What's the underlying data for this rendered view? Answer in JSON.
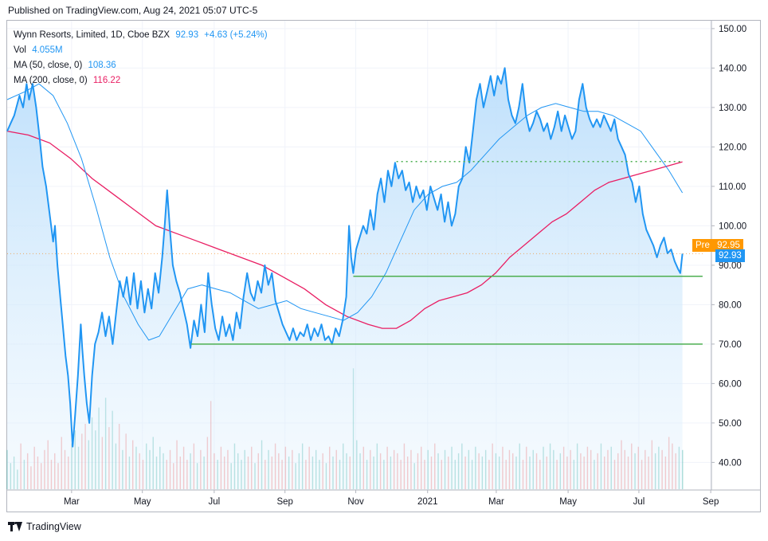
{
  "published": "Published on TradingView.com, Aug 24, 2021 05:07 UTC-5",
  "legend": {
    "symbol": "Wynn Resorts, Limited, 1D, Cboe BZX",
    "price": "92.93",
    "change": "+4.63 (+5.24%)",
    "vol_label": "Vol",
    "vol_value": "4.055M",
    "ma50_label": "MA (50, close, 0)",
    "ma50_value": "108.36",
    "ma200_label": "MA (200, close, 0)",
    "ma200_value": "116.22"
  },
  "badges": {
    "pre_label": "Pre",
    "pre_value": "92.95",
    "last_value": "92.93"
  },
  "footer": {
    "brand": "TradingView"
  },
  "colors": {
    "price_line": "#2196f3",
    "ma200": "#e91e63",
    "ma50": "#2196f3",
    "support": "#4caf50",
    "resistance": "#4caf50",
    "pre_badge": "#ff9800",
    "vol_up": "#26a69a",
    "vol_down": "#ef5350"
  },
  "chart_data": {
    "type": "line",
    "ylim": [
      33,
      152
    ],
    "y_ticks": [
      "150.00",
      "140.00",
      "130.00",
      "120.00",
      "110.00",
      "100.00",
      "90.00",
      "80.00",
      "70.00",
      "60.00",
      "50.00",
      "40.00"
    ],
    "x_ticks": [
      {
        "label": "Mar",
        "t": 1.82
      },
      {
        "label": "May",
        "t": 3.82
      },
      {
        "label": "Jul",
        "t": 5.85
      },
      {
        "label": "Sep",
        "t": 7.85
      },
      {
        "label": "Nov",
        "t": 9.85
      },
      {
        "label": "2021",
        "t": 11.88
      },
      {
        "label": "Mar",
        "t": 13.82
      },
      {
        "label": "May",
        "t": 15.85
      },
      {
        "label": "Jul",
        "t": 17.85
      },
      {
        "label": "Sep",
        "t": 19.88
      }
    ],
    "xlim": [
      0,
      19.9
    ],
    "price": [
      [
        0.0,
        124
      ],
      [
        0.1,
        126
      ],
      [
        0.2,
        128
      ],
      [
        0.35,
        133
      ],
      [
        0.45,
        130
      ],
      [
        0.55,
        136
      ],
      [
        0.62,
        132
      ],
      [
        0.72,
        136
      ],
      [
        0.82,
        130
      ],
      [
        0.92,
        122
      ],
      [
        1.0,
        115
      ],
      [
        1.1,
        110
      ],
      [
        1.2,
        103
      ],
      [
        1.3,
        96
      ],
      [
        1.35,
        100
      ],
      [
        1.42,
        90
      ],
      [
        1.5,
        82
      ],
      [
        1.58,
        74
      ],
      [
        1.65,
        67
      ],
      [
        1.72,
        62
      ],
      [
        1.78,
        55
      ],
      [
        1.85,
        44
      ],
      [
        1.92,
        52
      ],
      [
        2.0,
        62
      ],
      [
        2.08,
        75
      ],
      [
        2.12,
        69
      ],
      [
        2.18,
        62
      ],
      [
        2.25,
        55
      ],
      [
        2.32,
        50
      ],
      [
        2.4,
        62
      ],
      [
        2.48,
        70
      ],
      [
        2.58,
        73
      ],
      [
        2.68,
        78
      ],
      [
        2.78,
        72
      ],
      [
        2.88,
        77
      ],
      [
        2.98,
        70
      ],
      [
        3.08,
        78
      ],
      [
        3.18,
        86
      ],
      [
        3.28,
        82
      ],
      [
        3.38,
        87
      ],
      [
        3.48,
        80
      ],
      [
        3.58,
        88
      ],
      [
        3.68,
        79
      ],
      [
        3.78,
        86
      ],
      [
        3.88,
        78
      ],
      [
        3.98,
        84
      ],
      [
        4.08,
        79
      ],
      [
        4.18,
        88
      ],
      [
        4.28,
        83
      ],
      [
        4.38,
        92
      ],
      [
        4.45,
        100
      ],
      [
        4.52,
        109
      ],
      [
        4.6,
        99
      ],
      [
        4.68,
        90
      ],
      [
        4.78,
        86
      ],
      [
        4.88,
        83
      ],
      [
        4.98,
        79
      ],
      [
        5.08,
        75
      ],
      [
        5.18,
        69
      ],
      [
        5.28,
        76
      ],
      [
        5.38,
        72
      ],
      [
        5.48,
        80
      ],
      [
        5.58,
        73
      ],
      [
        5.68,
        88
      ],
      [
        5.78,
        80
      ],
      [
        5.88,
        74
      ],
      [
        5.98,
        71
      ],
      [
        6.08,
        77
      ],
      [
        6.18,
        72
      ],
      [
        6.28,
        75
      ],
      [
        6.38,
        71
      ],
      [
        6.48,
        78
      ],
      [
        6.58,
        74
      ],
      [
        6.68,
        82
      ],
      [
        6.78,
        88
      ],
      [
        6.88,
        83
      ],
      [
        6.98,
        81
      ],
      [
        7.08,
        86
      ],
      [
        7.18,
        83
      ],
      [
        7.28,
        90
      ],
      [
        7.38,
        85
      ],
      [
        7.48,
        88
      ],
      [
        7.58,
        81
      ],
      [
        7.68,
        78
      ],
      [
        7.78,
        75
      ],
      [
        7.88,
        73
      ],
      [
        7.98,
        71
      ],
      [
        8.08,
        74
      ],
      [
        8.18,
        71
      ],
      [
        8.28,
        73
      ],
      [
        8.38,
        72
      ],
      [
        8.48,
        75
      ],
      [
        8.58,
        71
      ],
      [
        8.68,
        74
      ],
      [
        8.78,
        72
      ],
      [
        8.88,
        75
      ],
      [
        8.98,
        71
      ],
      [
        9.08,
        72
      ],
      [
        9.18,
        70
      ],
      [
        9.28,
        74
      ],
      [
        9.38,
        72
      ],
      [
        9.48,
        76
      ],
      [
        9.58,
        82
      ],
      [
        9.66,
        100
      ],
      [
        9.72,
        92
      ],
      [
        9.78,
        88
      ],
      [
        9.86,
        94
      ],
      [
        9.96,
        97
      ],
      [
        10.06,
        100
      ],
      [
        10.16,
        98
      ],
      [
        10.26,
        104
      ],
      [
        10.36,
        99
      ],
      [
        10.46,
        108
      ],
      [
        10.56,
        112
      ],
      [
        10.66,
        106
      ],
      [
        10.76,
        114
      ],
      [
        10.86,
        110
      ],
      [
        10.96,
        116
      ],
      [
        11.06,
        112
      ],
      [
        11.16,
        114
      ],
      [
        11.26,
        109
      ],
      [
        11.36,
        111
      ],
      [
        11.46,
        106
      ],
      [
        11.56,
        110
      ],
      [
        11.66,
        107
      ],
      [
        11.76,
        109
      ],
      [
        11.86,
        104
      ],
      [
        11.96,
        110
      ],
      [
        12.06,
        107
      ],
      [
        12.16,
        104
      ],
      [
        12.26,
        108
      ],
      [
        12.36,
        101
      ],
      [
        12.46,
        106
      ],
      [
        12.56,
        100
      ],
      [
        12.66,
        103
      ],
      [
        12.76,
        110
      ],
      [
        12.86,
        112
      ],
      [
        12.96,
        120
      ],
      [
        13.06,
        116
      ],
      [
        13.16,
        124
      ],
      [
        13.26,
        132
      ],
      [
        13.36,
        136
      ],
      [
        13.46,
        130
      ],
      [
        13.56,
        134
      ],
      [
        13.66,
        138
      ],
      [
        13.76,
        133
      ],
      [
        13.86,
        138
      ],
      [
        13.96,
        136
      ],
      [
        14.06,
        140
      ],
      [
        14.16,
        132
      ],
      [
        14.26,
        128
      ],
      [
        14.36,
        126
      ],
      [
        14.46,
        130
      ],
      [
        14.56,
        136
      ],
      [
        14.66,
        128
      ],
      [
        14.76,
        124
      ],
      [
        14.86,
        126
      ],
      [
        14.96,
        129
      ],
      [
        15.06,
        127
      ],
      [
        15.16,
        124
      ],
      [
        15.26,
        126
      ],
      [
        15.36,
        122
      ],
      [
        15.46,
        125
      ],
      [
        15.56,
        129
      ],
      [
        15.66,
        124
      ],
      [
        15.76,
        128
      ],
      [
        15.86,
        125
      ],
      [
        15.96,
        122
      ],
      [
        16.06,
        124
      ],
      [
        16.16,
        132
      ],
      [
        16.26,
        136
      ],
      [
        16.36,
        130
      ],
      [
        16.46,
        127
      ],
      [
        16.56,
        125
      ],
      [
        16.66,
        127
      ],
      [
        16.76,
        125
      ],
      [
        16.86,
        128
      ],
      [
        16.96,
        126
      ],
      [
        17.06,
        124
      ],
      [
        17.16,
        127
      ],
      [
        17.26,
        122
      ],
      [
        17.36,
        120
      ],
      [
        17.46,
        118
      ],
      [
        17.56,
        113
      ],
      [
        17.66,
        111
      ],
      [
        17.76,
        106
      ],
      [
        17.86,
        110
      ],
      [
        17.96,
        103
      ],
      [
        18.06,
        99
      ],
      [
        18.16,
        97
      ],
      [
        18.26,
        95
      ],
      [
        18.36,
        92
      ],
      [
        18.46,
        95
      ],
      [
        18.56,
        97
      ],
      [
        18.66,
        93
      ],
      [
        18.76,
        94
      ],
      [
        18.86,
        91
      ],
      [
        18.96,
        89
      ],
      [
        19.02,
        88
      ],
      [
        19.08,
        92.93
      ]
    ],
    "ma50": [
      [
        0.0,
        132
      ],
      [
        0.5,
        134
      ],
      [
        0.9,
        136
      ],
      [
        1.3,
        133
      ],
      [
        1.7,
        126
      ],
      [
        2.1,
        117
      ],
      [
        2.5,
        105
      ],
      [
        2.9,
        92
      ],
      [
        3.3,
        82
      ],
      [
        3.7,
        75
      ],
      [
        4.0,
        71
      ],
      [
        4.3,
        72
      ],
      [
        4.7,
        78
      ],
      [
        5.1,
        84
      ],
      [
        5.5,
        85
      ],
      [
        5.9,
        84
      ],
      [
        6.3,
        83
      ],
      [
        6.7,
        81
      ],
      [
        7.1,
        79
      ],
      [
        7.5,
        80
      ],
      [
        7.9,
        81
      ],
      [
        8.3,
        79
      ],
      [
        8.7,
        78
      ],
      [
        9.1,
        77
      ],
      [
        9.5,
        76
      ],
      [
        9.9,
        78
      ],
      [
        10.3,
        82
      ],
      [
        10.7,
        88
      ],
      [
        11.1,
        96
      ],
      [
        11.5,
        104
      ],
      [
        11.9,
        108
      ],
      [
        12.3,
        110
      ],
      [
        12.7,
        111
      ],
      [
        13.1,
        114
      ],
      [
        13.5,
        118
      ],
      [
        13.9,
        122
      ],
      [
        14.3,
        125
      ],
      [
        14.7,
        128
      ],
      [
        15.1,
        130
      ],
      [
        15.5,
        131
      ],
      [
        15.9,
        130
      ],
      [
        16.3,
        129
      ],
      [
        16.7,
        129
      ],
      [
        17.1,
        128
      ],
      [
        17.5,
        126
      ],
      [
        17.9,
        124
      ],
      [
        18.3,
        119
      ],
      [
        18.7,
        114
      ],
      [
        19.08,
        108.36
      ]
    ],
    "ma200": [
      [
        0.0,
        124
      ],
      [
        0.6,
        123
      ],
      [
        1.2,
        121
      ],
      [
        1.8,
        117
      ],
      [
        2.4,
        112
      ],
      [
        3.0,
        108
      ],
      [
        3.6,
        104
      ],
      [
        4.2,
        100
      ],
      [
        4.8,
        98
      ],
      [
        5.4,
        96
      ],
      [
        6.0,
        94
      ],
      [
        6.6,
        92
      ],
      [
        7.2,
        90
      ],
      [
        7.8,
        87
      ],
      [
        8.4,
        84
      ],
      [
        9.0,
        80
      ],
      [
        9.6,
        77
      ],
      [
        10.2,
        75
      ],
      [
        10.6,
        74
      ],
      [
        11.0,
        74
      ],
      [
        11.4,
        76
      ],
      [
        11.8,
        79
      ],
      [
        12.2,
        81
      ],
      [
        12.6,
        82
      ],
      [
        13.0,
        83
      ],
      [
        13.4,
        85
      ],
      [
        13.8,
        88
      ],
      [
        14.2,
        92
      ],
      [
        14.6,
        95
      ],
      [
        15.0,
        98
      ],
      [
        15.4,
        101
      ],
      [
        15.8,
        103
      ],
      [
        16.2,
        106
      ],
      [
        16.6,
        109
      ],
      [
        17.0,
        111
      ],
      [
        17.4,
        112
      ],
      [
        17.8,
        113
      ],
      [
        18.2,
        114
      ],
      [
        18.6,
        115
      ],
      [
        19.08,
        116.22
      ]
    ],
    "levels": [
      {
        "name": "resistance-dotted",
        "y": 116.3,
        "x0": 11.0,
        "x1": 19.1,
        "style": "dotted"
      },
      {
        "name": "support-87",
        "y": 87.2,
        "x0": 9.78,
        "x1": 19.65,
        "style": "solid"
      },
      {
        "name": "support-70",
        "y": 70.0,
        "x0": 5.2,
        "x1": 19.65,
        "style": "solid"
      },
      {
        "name": "last-price",
        "y": 92.93,
        "x0": 0.0,
        "x1": 19.65,
        "style": "faint-dotted"
      }
    ],
    "volume_scale_max": 40,
    "volume": [
      12,
      8,
      10,
      6,
      14,
      9,
      11,
      7,
      13,
      10,
      8,
      12,
      15,
      9,
      11,
      8,
      16,
      12,
      10,
      14,
      18,
      13,
      17,
      20,
      15,
      22,
      18,
      25,
      16,
      28,
      19,
      24,
      14,
      20,
      12,
      17,
      10,
      15,
      13,
      11,
      9,
      14,
      12,
      16,
      10,
      13,
      11,
      9,
      12,
      8,
      15,
      10,
      13,
      9,
      11,
      14,
      8,
      12,
      10,
      16,
      27,
      11,
      9,
      13,
      10,
      12,
      8,
      14,
      11,
      9,
      12,
      10,
      13,
      8,
      11,
      15,
      9,
      12,
      10,
      14,
      11,
      9,
      13,
      10,
      12,
      8,
      11,
      14,
      9,
      13,
      10,
      12,
      9,
      11,
      8,
      13,
      10,
      12,
      9,
      14,
      11,
      10,
      37,
      15,
      11,
      13,
      9,
      12,
      10,
      14,
      11,
      9,
      13,
      10,
      12,
      11,
      9,
      14,
      10,
      12,
      8,
      11,
      13,
      9,
      12,
      10,
      14,
      11,
      9,
      12,
      10,
      13,
      9,
      11,
      14,
      10,
      12,
      9,
      13,
      11,
      10,
      12,
      9,
      14,
      11,
      10,
      13,
      9,
      12,
      11,
      10,
      14,
      9,
      13,
      10,
      12,
      11,
      9,
      13,
      10,
      14,
      12,
      9,
      11,
      13,
      10,
      12,
      9,
      14,
      11,
      10,
      13,
      12,
      9,
      11,
      14,
      10,
      12,
      13,
      9,
      11,
      15,
      12,
      10,
      14,
      11,
      13,
      9,
      12,
      10,
      15,
      11,
      13,
      12,
      10,
      16,
      14,
      11,
      13,
      12
    ]
  }
}
